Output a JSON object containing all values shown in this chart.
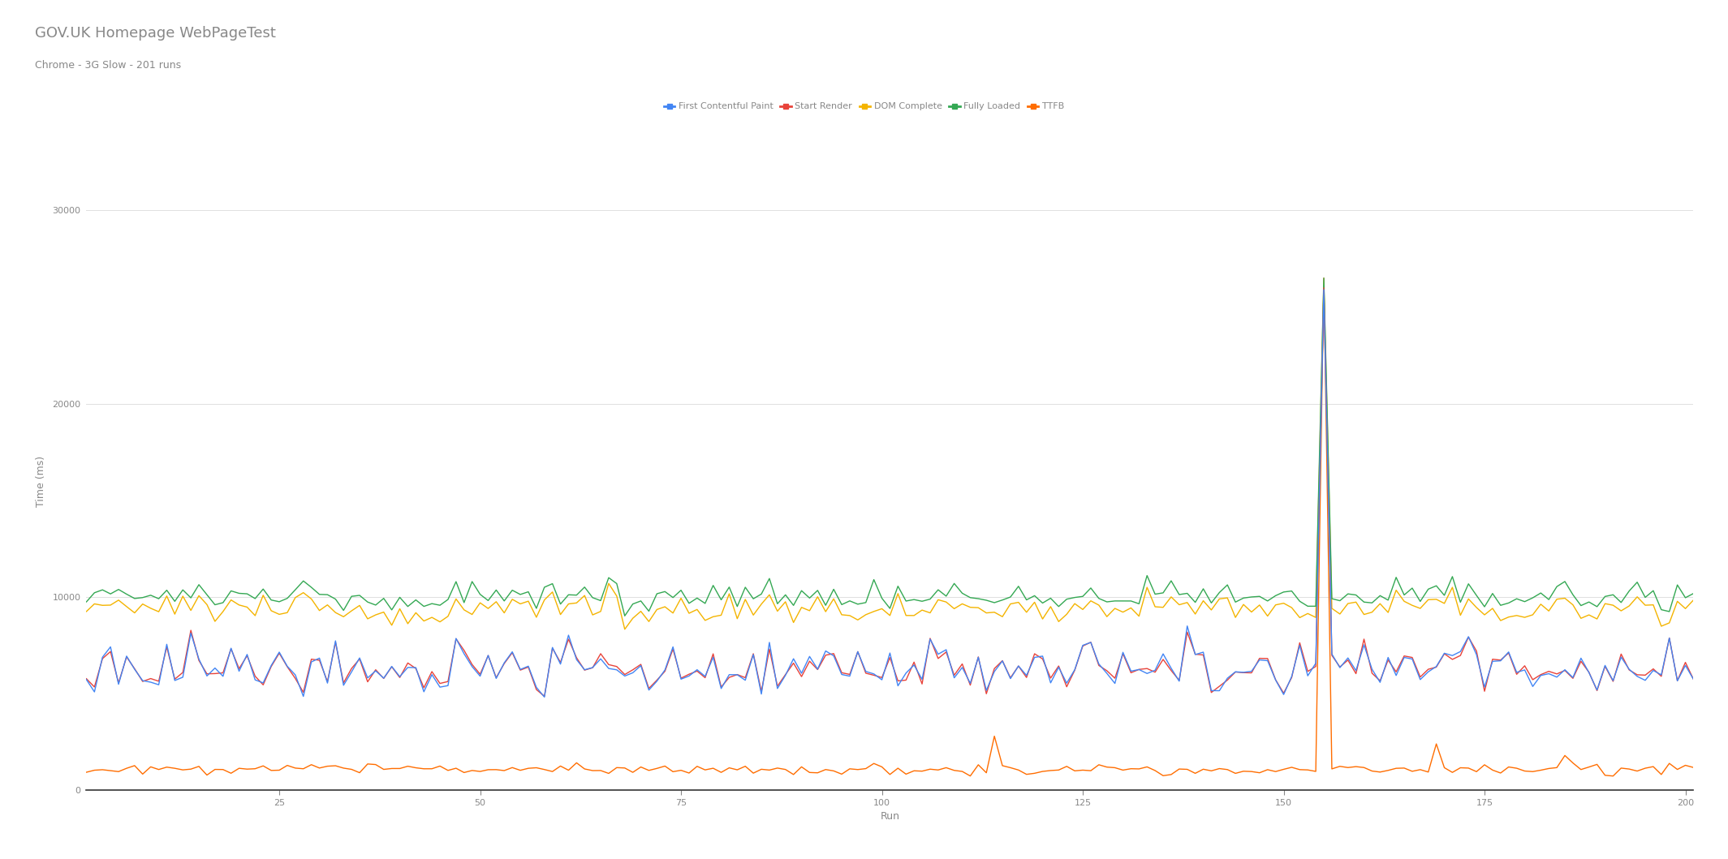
{
  "title": "GOV.UK Homepage WebPageTest",
  "subtitle": "Chrome - 3G Slow - 201 runs",
  "xlabel": "Run",
  "ylabel": "Time (ms)",
  "ylim": [
    0,
    32000
  ],
  "yticks": [
    0,
    10000,
    20000,
    30000
  ],
  "n_runs": 201,
  "legend_labels": [
    "First Contentful Paint",
    "Start Render",
    "DOM Complete",
    "Fully Loaded",
    "TTFB"
  ],
  "line_colors": [
    "#4285F4",
    "#E8433A",
    "#F4B400",
    "#34A853",
    "#FF6D00"
  ],
  "background_color": "#ffffff",
  "grid_color": "#e0e0e0",
  "title_color": "#888888",
  "spike_run": 155,
  "spike_value": 26500,
  "seed": 12345
}
